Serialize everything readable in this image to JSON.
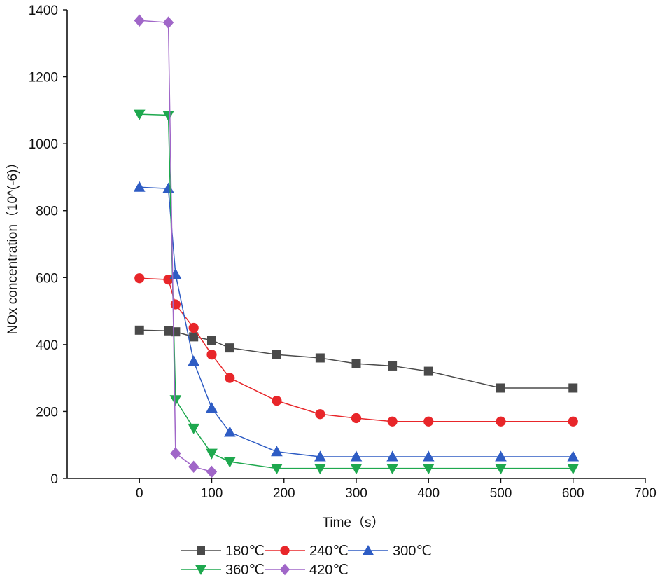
{
  "chart_data": {
    "type": "line",
    "title": "",
    "xlabel": "Time（s）",
    "ylabel": "NOx concentration（10^(-6)）",
    "xlim": [
      -100,
      700
    ],
    "ylim": [
      0,
      1400
    ],
    "xticks": [
      0,
      100,
      200,
      300,
      400,
      500,
      600,
      700
    ],
    "yticks": [
      0,
      200,
      400,
      600,
      800,
      1000,
      1200,
      1400
    ],
    "grid": false,
    "legend_position": "bottom",
    "series": [
      {
        "name": "180℃",
        "color": "#4a4a4a",
        "marker": "square",
        "x": [
          0,
          40,
          50,
          75,
          100,
          125,
          190,
          250,
          300,
          350,
          400,
          500,
          600
        ],
        "y": [
          443,
          441,
          438,
          423,
          413,
          390,
          370,
          360,
          343,
          336,
          320,
          270,
          270
        ]
      },
      {
        "name": "240℃",
        "color": "#e8262a",
        "marker": "circle",
        "x": [
          0,
          40,
          50,
          75,
          100,
          125,
          190,
          250,
          300,
          350,
          400,
          500,
          600
        ],
        "y": [
          598,
          594,
          520,
          450,
          370,
          300,
          232,
          192,
          180,
          170,
          170,
          170,
          170
        ]
      },
      {
        "name": "300℃",
        "color": "#2e5cc4",
        "marker": "triangle-up",
        "x": [
          0,
          40,
          50,
          75,
          100,
          125,
          190,
          250,
          300,
          350,
          400,
          500,
          600
        ],
        "y": [
          870,
          866,
          610,
          350,
          210,
          138,
          80,
          65,
          65,
          65,
          65,
          65,
          65
        ]
      },
      {
        "name": "360℃",
        "color": "#1ea84e",
        "marker": "triangle-down",
        "x": [
          0,
          40,
          50,
          75,
          100,
          125,
          190,
          250,
          300,
          350,
          400,
          500,
          600
        ],
        "y": [
          1088,
          1085,
          235,
          150,
          75,
          50,
          30,
          30,
          30,
          30,
          30,
          30,
          30
        ]
      },
      {
        "name": "420℃",
        "color": "#a066c8",
        "marker": "diamond",
        "x": [
          0,
          40,
          50,
          75,
          100
        ],
        "y": [
          1368,
          1362,
          75,
          35,
          20
        ]
      }
    ]
  }
}
